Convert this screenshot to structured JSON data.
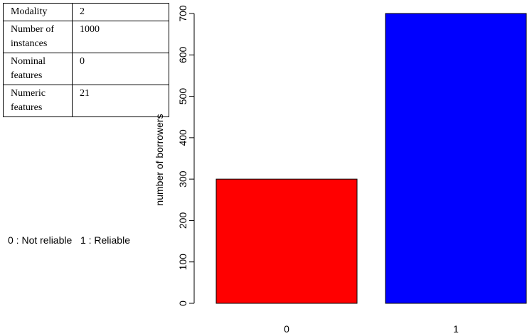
{
  "info_table": {
    "rows": [
      {
        "label": "Modality",
        "value": "2"
      },
      {
        "label": "Number of instances",
        "value": "1000"
      },
      {
        "label": "Nominal features",
        "value": "0"
      },
      {
        "label": "Numeric features",
        "value": "21"
      }
    ]
  },
  "legend_note": "0 : Not reliable   1 : Reliable",
  "chart_data": {
    "type": "bar",
    "categories": [
      "0",
      "1"
    ],
    "values": [
      300,
      700
    ],
    "colors": [
      "#ff0000",
      "#0000ff"
    ],
    "title": "",
    "xlabel": "",
    "ylabel": "number of borrowers",
    "ylim": [
      0,
      700
    ],
    "yticks": [
      0,
      100,
      200,
      300,
      400,
      500,
      600,
      700
    ],
    "grid": false
  }
}
